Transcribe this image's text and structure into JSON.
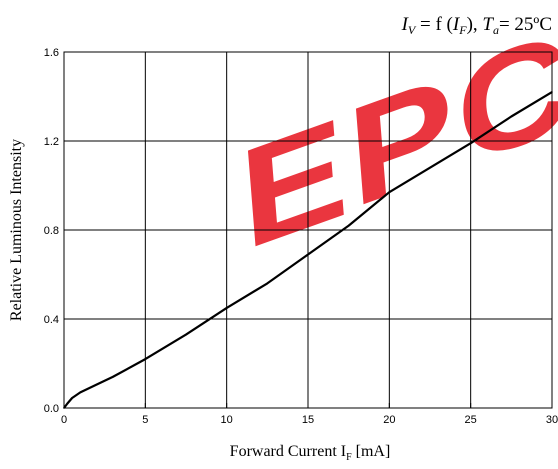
{
  "chart_data": {
    "type": "line",
    "formula": {
      "i": "I",
      "v": "V",
      "eq": " = f (",
      "i2": "I",
      "f": "F",
      "mid": "), ",
      "t": "T",
      "a": "a",
      "rest": "= 25ºC"
    },
    "xlabel": {
      "text": "Forward Current I",
      "sub": "F",
      "unit": " [mA]"
    },
    "ylabel": "Relative Luminous Intensity",
    "xlim": [
      0,
      30
    ],
    "ylim": [
      0,
      1.6
    ],
    "xticks": [
      0,
      5,
      10,
      15,
      20,
      25,
      30
    ],
    "yticks": [
      0.0,
      0.4,
      0.8,
      1.2,
      1.6
    ],
    "ytick_labels": [
      "0.0",
      "0.4",
      "0.8",
      "1.2",
      "1.6"
    ],
    "grid": true,
    "series": [
      {
        "color": "#000000",
        "x": [
          0,
          0.2,
          0.5,
          1,
          2,
          3,
          5,
          7.5,
          10,
          12.5,
          15,
          17.5,
          20,
          22.5,
          25,
          27.5,
          30
        ],
        "y": [
          0,
          0.02,
          0.045,
          0.07,
          0.105,
          0.14,
          0.22,
          0.33,
          0.45,
          0.56,
          0.69,
          0.82,
          0.97,
          1.08,
          1.19,
          1.31,
          1.42
        ]
      }
    ],
    "watermark": {
      "text": "EPC",
      "color": "#e8202a"
    }
  }
}
